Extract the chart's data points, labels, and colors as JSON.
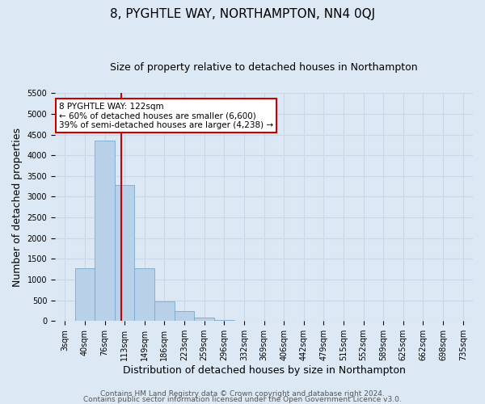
{
  "title": "8, PYGHTLE WAY, NORTHAMPTON, NN4 0QJ",
  "subtitle": "Size of property relative to detached houses in Northampton",
  "xlabel": "Distribution of detached houses by size in Northampton",
  "ylabel": "Number of detached properties",
  "footer_line1": "Contains HM Land Registry data © Crown copyright and database right 2024.",
  "footer_line2": "Contains public sector information licensed under the Open Government Licence v3.0.",
  "bar_labels": [
    "3sqm",
    "40sqm",
    "76sqm",
    "113sqm",
    "149sqm",
    "186sqm",
    "223sqm",
    "259sqm",
    "296sqm",
    "332sqm",
    "369sqm",
    "406sqm",
    "442sqm",
    "479sqm",
    "515sqm",
    "552sqm",
    "589sqm",
    "625sqm",
    "662sqm",
    "698sqm",
    "735sqm"
  ],
  "bar_values": [
    0,
    1270,
    4350,
    3290,
    1270,
    480,
    230,
    75,
    30,
    0,
    0,
    0,
    0,
    0,
    0,
    0,
    0,
    0,
    0,
    0,
    0
  ],
  "bar_color": "#b8d0e8",
  "bar_edge_color": "#7aabcc",
  "vline_color": "#cc0000",
  "vline_x_index": 3,
  "annotation_title": "8 PYGHTLE WAY: 122sqm",
  "annotation_line2": "← 60% of detached houses are smaller (6,600)",
  "annotation_line3": "39% of semi-detached houses are larger (4,238) →",
  "annotation_box_color": "#ffffff",
  "annotation_box_edge_color": "#cc0000",
  "ylim": [
    0,
    5500
  ],
  "yticks": [
    0,
    500,
    1000,
    1500,
    2000,
    2500,
    3000,
    3500,
    4000,
    4500,
    5000,
    5500
  ],
  "grid_color": "#c8d8e8",
  "background_color": "#dce8f4",
  "title_fontsize": 11,
  "subtitle_fontsize": 9,
  "axis_label_fontsize": 9,
  "tick_fontsize": 7,
  "footer_fontsize": 6.5
}
